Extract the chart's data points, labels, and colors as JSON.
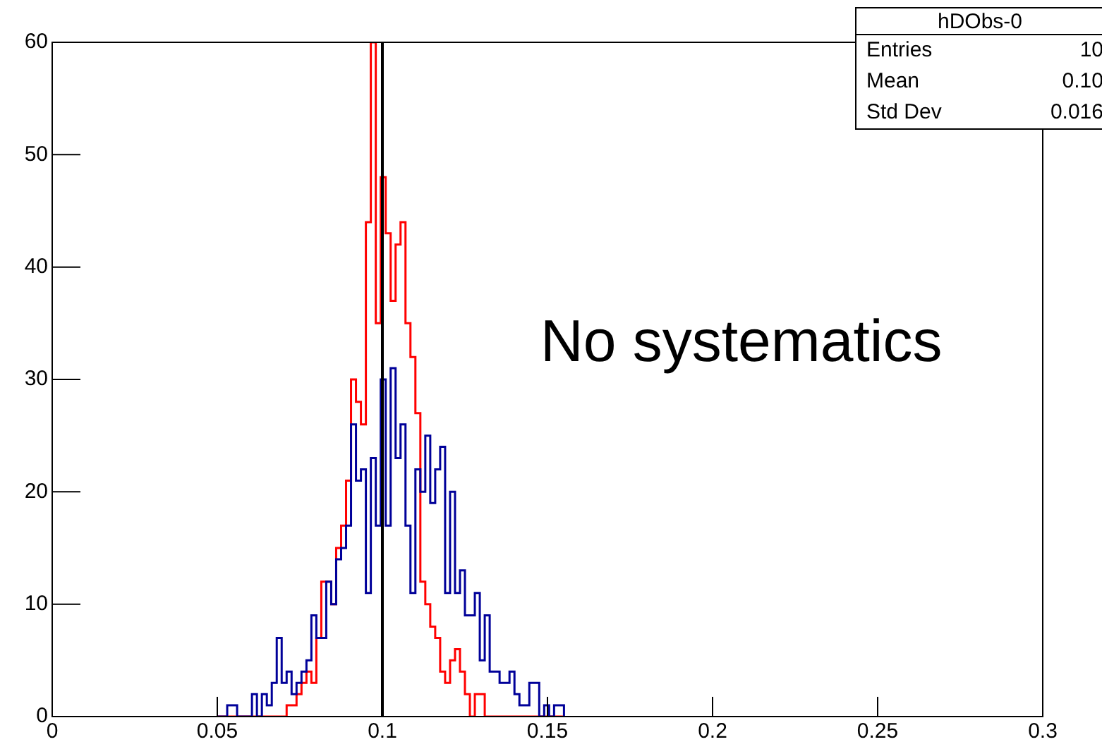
{
  "chart_data": {
    "type": "histogram",
    "annotations": [
      "No systematics",
      "hDObs-0",
      "Entries",
      "10",
      "Mean",
      "0.10",
      "Std Dev",
      "0.016"
    ],
    "bins": [
      0.05,
      0.0515,
      0.053,
      0.0545,
      0.056,
      0.0575,
      0.059,
      0.0605,
      0.062,
      0.0635,
      0.065,
      0.0665,
      0.068,
      0.0695,
      0.071,
      0.0725,
      0.074,
      0.0755,
      0.077,
      0.0785,
      0.08,
      0.0815,
      0.083,
      0.0845,
      0.086,
      0.0875,
      0.089,
      0.0905,
      0.092,
      0.0935,
      0.095,
      0.0965,
      0.098,
      0.0995,
      0.101,
      0.1025,
      0.104,
      0.1055,
      0.107,
      0.1085,
      0.11,
      0.1115,
      0.113,
      0.1145,
      0.116,
      0.1175,
      0.119,
      0.1205,
      0.122,
      0.1235,
      0.125,
      0.1265,
      0.128,
      0.1295,
      0.131,
      0.1325,
      0.134,
      0.1355,
      0.137,
      0.1385,
      0.14,
      0.1415,
      0.143,
      0.1445,
      0.146,
      0.1475,
      0.149,
      0.1505,
      0.152,
      0.1535,
      0.155
    ],
    "series": [
      {
        "color": "#000099",
        "values": [
          0,
          0,
          1,
          1,
          0,
          0,
          0,
          2,
          0,
          2,
          1,
          3,
          7,
          3,
          4,
          2,
          3,
          4,
          5,
          9,
          7,
          7,
          12,
          10,
          14,
          15,
          17,
          26,
          21,
          22,
          11,
          23,
          17,
          30,
          17,
          31,
          23,
          26,
          17,
          11,
          22,
          20,
          25,
          19,
          22,
          24,
          11,
          20,
          11,
          13,
          9,
          9,
          11,
          5,
          9,
          4,
          4,
          3,
          3,
          4,
          2,
          1,
          1,
          3,
          3,
          0,
          1,
          0,
          1,
          1
        ]
      },
      {
        "color": "#ff0000",
        "values": [
          0,
          0,
          0,
          0,
          0,
          0,
          0,
          0,
          0,
          0,
          0,
          0,
          0,
          0,
          1,
          1,
          2,
          3,
          4,
          3,
          7,
          12,
          12,
          10,
          15,
          17,
          21,
          30,
          28,
          26,
          44,
          60,
          35,
          48,
          43,
          37,
          42,
          44,
          35,
          32,
          27,
          12,
          10,
          8,
          7,
          4,
          3,
          5,
          6,
          4,
          2,
          0,
          2,
          2,
          0,
          0,
          0,
          0,
          0,
          0,
          0,
          0,
          0,
          0,
          0,
          0,
          0,
          0,
          0,
          0
        ]
      }
    ],
    "xlim": [
      0,
      0.3
    ],
    "xticks": [
      0,
      0.05,
      0.1,
      0.15,
      0.2,
      0.25,
      0.3
    ],
    "ylim": [
      0,
      60
    ],
    "yticks": [
      0,
      10,
      20,
      30,
      40,
      50,
      60
    ],
    "ref_lines": [
      {
        "axis": "x",
        "value": 0.1,
        "color": "#000000"
      }
    ],
    "grid": false,
    "legend": false
  }
}
